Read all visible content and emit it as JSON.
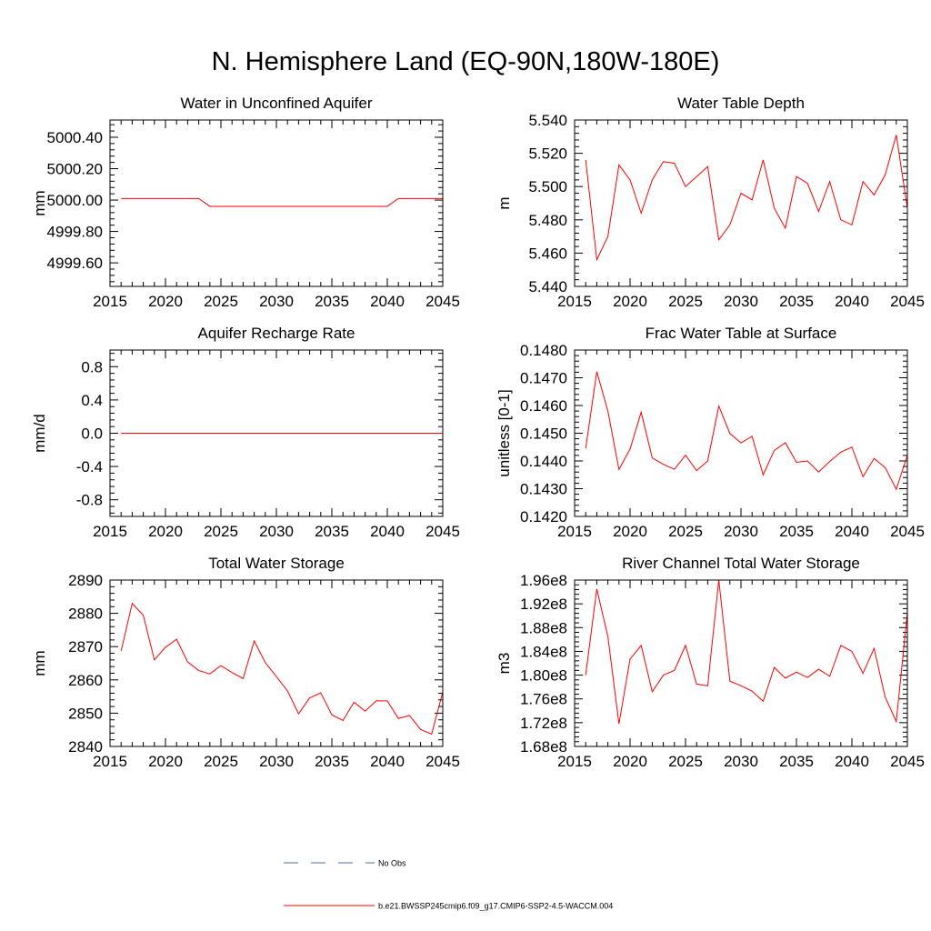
{
  "title": "N. Hemisphere Land (EQ-90N,180W-180E)",
  "colors": {
    "model": "#ff0000",
    "obs": "#4a6fa5",
    "axis": "#000000"
  },
  "legend": {
    "entries": [
      {
        "label": "No Obs",
        "style": "dashed"
      },
      {
        "label": "b.e21.BWSSP245cmip6.f09_g17.CMIP6-SSP2-4.5-WACCM.004",
        "style": "solid"
      }
    ]
  },
  "chart_data": [
    {
      "type": "line",
      "title": "Water in Unconfined Aquifer",
      "ylabel": "mm",
      "xlim": [
        2015,
        2045
      ],
      "ylim": [
        4999.45,
        5000.51
      ],
      "xticks": [
        2015,
        2020,
        2025,
        2030,
        2035,
        2040,
        2045
      ],
      "yticks": [
        4999.6,
        4999.8,
        5000.0,
        5000.2,
        5000.4
      ],
      "ytick_labels": [
        "4999.60",
        "4999.80",
        "5000.00",
        "5000.20",
        "5000.40"
      ],
      "x": [
        2016,
        2017,
        2018,
        2019,
        2020,
        2021,
        2022,
        2023,
        2024,
        2025,
        2026,
        2027,
        2028,
        2029,
        2030,
        2031,
        2032,
        2033,
        2034,
        2035,
        2036,
        2037,
        2038,
        2039,
        2040,
        2041,
        2042,
        2043,
        2044,
        2045
      ],
      "series": [
        {
          "values": [
            5000.01,
            5000.01,
            5000.01,
            5000.01,
            5000.01,
            5000.01,
            5000.01,
            5000.01,
            4999.96,
            4999.96,
            4999.96,
            4999.96,
            4999.96,
            4999.96,
            4999.96,
            4999.96,
            4999.96,
            4999.96,
            4999.96,
            4999.96,
            4999.96,
            4999.96,
            4999.96,
            4999.96,
            4999.96,
            5000.01,
            5000.01,
            5000.01,
            5000.01,
            5000.01
          ]
        }
      ]
    },
    {
      "type": "line",
      "title": "Water Table Depth",
      "ylabel": "m",
      "xlim": [
        2015,
        2045
      ],
      "ylim": [
        5.44,
        5.54
      ],
      "xticks": [
        2015,
        2020,
        2025,
        2030,
        2035,
        2040,
        2045
      ],
      "yticks": [
        5.44,
        5.46,
        5.48,
        5.5,
        5.52,
        5.54
      ],
      "ytick_labels": [
        "5.440",
        "5.460",
        "5.480",
        "5.500",
        "5.520",
        "5.540"
      ],
      "x": [
        2016,
        2017,
        2018,
        2019,
        2020,
        2021,
        2022,
        2023,
        2024,
        2025,
        2026,
        2027,
        2028,
        2029,
        2030,
        2031,
        2032,
        2033,
        2034,
        2035,
        2036,
        2037,
        2038,
        2039,
        2040,
        2041,
        2042,
        2043,
        2044,
        2045
      ],
      "series": [
        {
          "values": [
            5.516,
            5.456,
            5.47,
            5.513,
            5.504,
            5.484,
            5.504,
            5.515,
            5.514,
            5.5,
            5.506,
            5.512,
            5.468,
            5.477,
            5.496,
            5.492,
            5.516,
            5.487,
            5.475,
            5.506,
            5.502,
            5.485,
            5.503,
            5.48,
            5.477,
            5.503,
            5.495,
            5.507,
            5.531,
            5.487
          ]
        }
      ]
    },
    {
      "type": "line",
      "title": "Aquifer Recharge Rate",
      "ylabel": "mm/d",
      "xlim": [
        2015,
        2045
      ],
      "ylim": [
        -1.0,
        1.0
      ],
      "xticks": [
        2015,
        2020,
        2025,
        2030,
        2035,
        2040,
        2045
      ],
      "yticks": [
        -0.8,
        -0.4,
        0.0,
        0.4,
        0.8
      ],
      "ytick_labels": [
        "-0.8",
        "-0.4",
        "0.0",
        "0.4",
        "0.8"
      ],
      "x": [
        2016,
        2017,
        2018,
        2019,
        2020,
        2021,
        2022,
        2023,
        2024,
        2025,
        2026,
        2027,
        2028,
        2029,
        2030,
        2031,
        2032,
        2033,
        2034,
        2035,
        2036,
        2037,
        2038,
        2039,
        2040,
        2041,
        2042,
        2043,
        2044,
        2045
      ],
      "series": [
        {
          "values": [
            0,
            0,
            0,
            0,
            0,
            0,
            0,
            0,
            0,
            0,
            0,
            0,
            0,
            0,
            0,
            0,
            0,
            0,
            0,
            0,
            0,
            0,
            0,
            0,
            0,
            0,
            0,
            0,
            0,
            0
          ]
        }
      ]
    },
    {
      "type": "line",
      "title": "Frac Water Table at Surface",
      "ylabel": "unitless [0-1]",
      "xlim": [
        2015,
        2045
      ],
      "ylim": [
        0.142,
        0.148
      ],
      "xticks": [
        2015,
        2020,
        2025,
        2030,
        2035,
        2040,
        2045
      ],
      "yticks": [
        0.142,
        0.143,
        0.144,
        0.145,
        0.146,
        0.147,
        0.148
      ],
      "ytick_labels": [
        "0.1420",
        "0.1430",
        "0.1440",
        "0.1450",
        "0.1460",
        "0.1470",
        "0.1480"
      ],
      "x": [
        2016,
        2017,
        2018,
        2019,
        2020,
        2021,
        2022,
        2023,
        2024,
        2025,
        2026,
        2027,
        2028,
        2029,
        2030,
        2031,
        2032,
        2033,
        2034,
        2035,
        2036,
        2037,
        2038,
        2039,
        2040,
        2041,
        2042,
        2043,
        2044,
        2045
      ],
      "series": [
        {
          "values": [
            0.14445,
            0.14722,
            0.1458,
            0.14369,
            0.14443,
            0.14576,
            0.14411,
            0.14388,
            0.1437,
            0.14421,
            0.14365,
            0.144,
            0.14598,
            0.14499,
            0.14465,
            0.14489,
            0.1435,
            0.14438,
            0.14466,
            0.14395,
            0.144,
            0.1436,
            0.14398,
            0.14432,
            0.1445,
            0.14343,
            0.14409,
            0.14376,
            0.14298,
            0.1442
          ]
        }
      ]
    },
    {
      "type": "line",
      "title": "Total Water Storage",
      "ylabel": "mm",
      "xlim": [
        2015,
        2045
      ],
      "ylim": [
        2840,
        2890
      ],
      "xticks": [
        2015,
        2020,
        2025,
        2030,
        2035,
        2040,
        2045
      ],
      "yticks": [
        2840,
        2850,
        2860,
        2870,
        2880,
        2890
      ],
      "ytick_labels": [
        "2840",
        "2850",
        "2860",
        "2870",
        "2880",
        "2890"
      ],
      "x": [
        2016,
        2017,
        2018,
        2019,
        2020,
        2021,
        2022,
        2023,
        2024,
        2025,
        2026,
        2027,
        2028,
        2029,
        2030,
        2031,
        2032,
        2033,
        2034,
        2035,
        2036,
        2037,
        2038,
        2039,
        2040,
        2041,
        2042,
        2043,
        2044,
        2045
      ],
      "series": [
        {
          "values": [
            2868.7,
            2883.0,
            2879.4,
            2866.0,
            2869.8,
            2872.2,
            2865.4,
            2862.8,
            2861.8,
            2864.3,
            2862.2,
            2860.4,
            2871.7,
            2865.2,
            2861.0,
            2856.7,
            2849.8,
            2854.6,
            2856.1,
            2849.5,
            2847.8,
            2853.3,
            2850.6,
            2853.7,
            2853.7,
            2848.4,
            2849.3,
            2845.1,
            2843.7,
            2856.4
          ]
        }
      ]
    },
    {
      "type": "line",
      "title": "River Channel Total Water Storage",
      "ylabel": "m3",
      "xlim": [
        2015,
        2045
      ],
      "ylim": [
        168000000.0,
        196000000.0
      ],
      "xticks": [
        2015,
        2020,
        2025,
        2030,
        2035,
        2040,
        2045
      ],
      "yticks": [
        168000000.0,
        172000000.0,
        176000000.0,
        180000000.0,
        184000000.0,
        188000000.0,
        192000000.0,
        196000000.0
      ],
      "ytick_labels": [
        "1.68e8",
        "1.72e8",
        "1.76e8",
        "1.80e8",
        "1.84e8",
        "1.88e8",
        "1.92e8",
        "1.96e8"
      ],
      "x": [
        2016,
        2017,
        2018,
        2019,
        2020,
        2021,
        2022,
        2023,
        2024,
        2025,
        2026,
        2027,
        2028,
        2029,
        2030,
        2031,
        2032,
        2033,
        2034,
        2035,
        2036,
        2037,
        2038,
        2039,
        2040,
        2041,
        2042,
        2043,
        2044,
        2045
      ],
      "series": [
        {
          "values": [
            180000000.0,
            194500000.0,
            186500000.0,
            171800000.0,
            182700000.0,
            185000000.0,
            177200000.0,
            180000000.0,
            180800000.0,
            185000000.0,
            178500000.0,
            178200000.0,
            196000000.0,
            179000000.0,
            178200000.0,
            177300000.0,
            175600000.0,
            181300000.0,
            179500000.0,
            180500000.0,
            179600000.0,
            181000000.0,
            179800000.0,
            185000000.0,
            184000000.0,
            180300000.0,
            184500000.0,
            176300000.0,
            172200000.0,
            190500000.0
          ]
        }
      ]
    }
  ]
}
